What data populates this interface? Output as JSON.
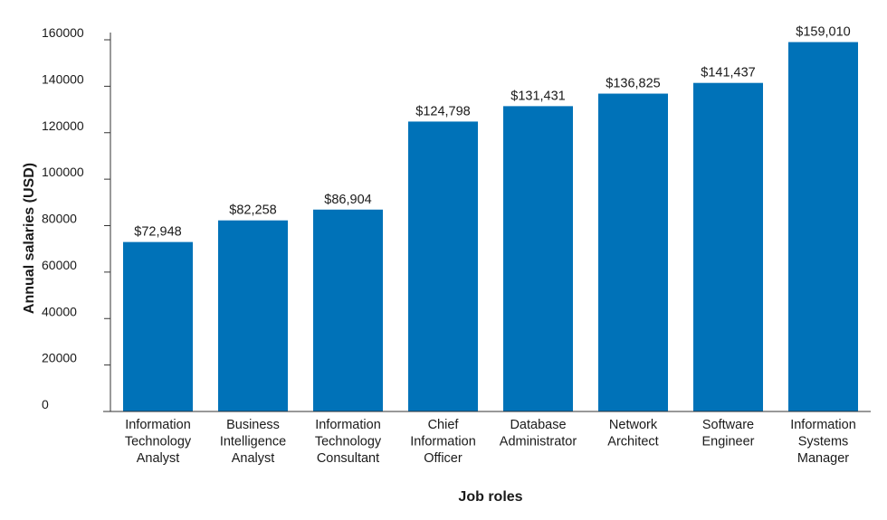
{
  "chart_data": {
    "type": "bar",
    "title": "",
    "xlabel": "Job roles",
    "ylabel": "Annual salaries (USD)",
    "ylim": [
      0,
      160000
    ],
    "yticks": [
      0,
      20000,
      40000,
      60000,
      80000,
      100000,
      120000,
      140000,
      160000
    ],
    "ytick_labels": [
      "0",
      "20000",
      "40000",
      "60000",
      "80000",
      "100000",
      "120000",
      "140000",
      "160000"
    ],
    "grid": false,
    "bar_color": "#0072B8",
    "categories": [
      [
        "Information",
        "Technology",
        "Analyst"
      ],
      [
        "Business",
        "Intelligence",
        "Analyst"
      ],
      [
        "Information",
        "Technology",
        "Consultant"
      ],
      [
        "Chief",
        "Information",
        "Officer"
      ],
      [
        "Database",
        "Administrator"
      ],
      [
        "Network",
        "Architect"
      ],
      [
        "Software",
        "Engineer"
      ],
      [
        "Information",
        "Systems",
        "Manager"
      ]
    ],
    "values": [
      72948,
      82258,
      86904,
      124798,
      131431,
      136825,
      141437,
      159010
    ],
    "data_labels": [
      "$72,948",
      "$82,258",
      "$86,904",
      "$124,798",
      "$131,431",
      "$136,825",
      "$141,437",
      "$159,010"
    ]
  }
}
